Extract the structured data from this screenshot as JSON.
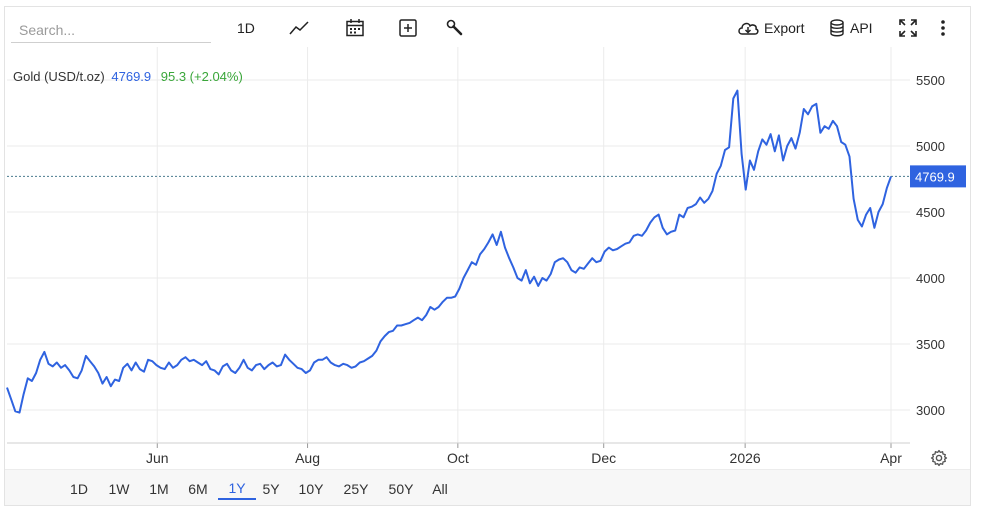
{
  "search": {
    "placeholder": "Search..."
  },
  "toolbar": {
    "interval_label": "1D",
    "export_label": "Export",
    "api_label": "API",
    "icons": [
      "line-chart-icon",
      "calendar-icon",
      "plus-square-icon",
      "wrench-icon",
      "cloud-download-icon",
      "database-icon",
      "fullscreen-icon",
      "more-vertical-icon"
    ]
  },
  "legend": {
    "name": "Gold (USD/t.oz)",
    "price": "4769.9",
    "change": "95.3 (+2.04%)"
  },
  "ranges": [
    "1D",
    "1W",
    "1M",
    "6M",
    "1Y",
    "5Y",
    "10Y",
    "25Y",
    "50Y",
    "All"
  ],
  "active_range": "1Y",
  "colors": {
    "line": "#2f63e0",
    "change_up": "#3aa63a",
    "grid": "#ebebeb"
  },
  "chart_data": {
    "type": "line",
    "title": "",
    "xlabel": "",
    "ylabel": "",
    "ylim": [
      2750,
      5750
    ],
    "yticks": [
      3000,
      3500,
      4000,
      4500,
      5000,
      5500
    ],
    "x_ticks": [
      {
        "label": "Jun",
        "t": 0.17
      },
      {
        "label": "Aug",
        "t": 0.34
      },
      {
        "label": "Oct",
        "t": 0.51
      },
      {
        "label": "Dec",
        "t": 0.675
      },
      {
        "label": "2026",
        "t": 0.835
      },
      {
        "label": "Apr",
        "t": 1.0
      }
    ],
    "last_value": 4769.9,
    "series": [
      {
        "values": [
          3170,
          3080,
          2990,
          2980,
          3120,
          3240,
          3220,
          3280,
          3380,
          3440,
          3350,
          3330,
          3360,
          3320,
          3340,
          3300,
          3250,
          3240,
          3300,
          3410,
          3370,
          3330,
          3280,
          3200,
          3250,
          3180,
          3230,
          3220,
          3320,
          3350,
          3300,
          3360,
          3310,
          3290,
          3380,
          3370,
          3340,
          3320,
          3310,
          3360,
          3320,
          3340,
          3380,
          3400,
          3370,
          3380,
          3360,
          3340,
          3370,
          3310,
          3300,
          3270,
          3330,
          3350,
          3300,
          3280,
          3320,
          3380,
          3320,
          3300,
          3340,
          3350,
          3310,
          3340,
          3360,
          3330,
          3340,
          3420,
          3380,
          3350,
          3320,
          3310,
          3280,
          3300,
          3360,
          3380,
          3380,
          3400,
          3360,
          3340,
          3330,
          3350,
          3340,
          3320,
          3330,
          3360,
          3370,
          3390,
          3410,
          3450,
          3520,
          3560,
          3590,
          3600,
          3640,
          3640,
          3650,
          3660,
          3680,
          3700,
          3680,
          3720,
          3780,
          3760,
          3780,
          3820,
          3850,
          3850,
          3860,
          3920,
          4000,
          4060,
          4120,
          4100,
          4180,
          4220,
          4270,
          4330,
          4250,
          4350,
          4230,
          4150,
          4080,
          4000,
          3980,
          4060,
          3960,
          4010,
          3940,
          4000,
          3980,
          4030,
          4120,
          4140,
          4150,
          4120,
          4060,
          4040,
          4080,
          4070,
          4110,
          4150,
          4120,
          4130,
          4200,
          4230,
          4210,
          4220,
          4240,
          4260,
          4270,
          4320,
          4330,
          4320,
          4360,
          4420,
          4460,
          4480,
          4380,
          4330,
          4350,
          4360,
          4480,
          4460,
          4530,
          4540,
          4560,
          4610,
          4570,
          4600,
          4660,
          4790,
          4850,
          4970,
          4990,
          5360,
          5420,
          4940,
          4670,
          4890,
          4820,
          4960,
          5050,
          5010,
          5090,
          4960,
          5080,
          4890,
          5000,
          5060,
          4980,
          5100,
          5280,
          5240,
          5300,
          5320,
          5100,
          5150,
          5130,
          5190,
          5150,
          5030,
          5010,
          4920,
          4600,
          4440,
          4390,
          4480,
          4530,
          4380,
          4500,
          4560,
          4680,
          4770
        ]
      }
    ]
  }
}
